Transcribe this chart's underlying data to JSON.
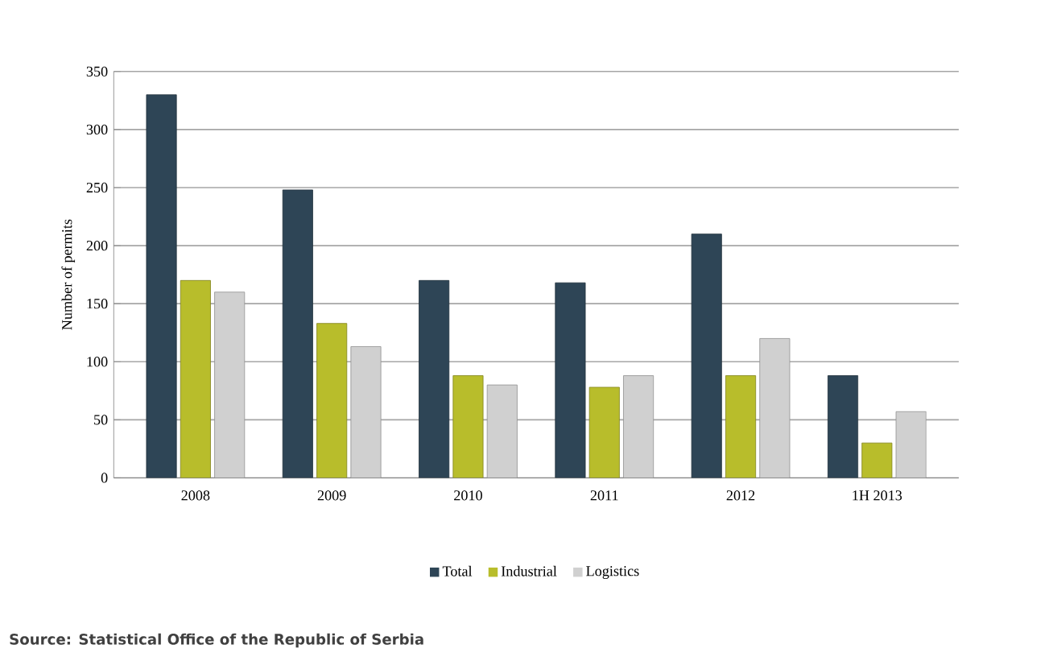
{
  "chart_data": {
    "type": "bar",
    "ylabel": "Number of permits",
    "categories": [
      "2008",
      "2009",
      "2010",
      "2011",
      "2012",
      "1H 2013"
    ],
    "series": [
      {
        "name": "Total",
        "color": "#2e4556",
        "values": [
          330,
          248,
          170,
          168,
          210,
          88
        ]
      },
      {
        "name": "Industrial",
        "color": "#b8bd2b",
        "values": [
          170,
          133,
          88,
          78,
          88,
          30
        ]
      },
      {
        "name": "Logistics",
        "color": "#d0d0d0",
        "values": [
          160,
          113,
          80,
          88,
          120,
          57
        ]
      }
    ],
    "ylim": [
      0,
      350
    ],
    "yticks": [
      0,
      50,
      100,
      150,
      200,
      250,
      300,
      350
    ],
    "grid": "y",
    "legend": "bottom",
    "annotations": [
      "Source: Statistical Office of the Republic  of Serbia"
    ]
  }
}
